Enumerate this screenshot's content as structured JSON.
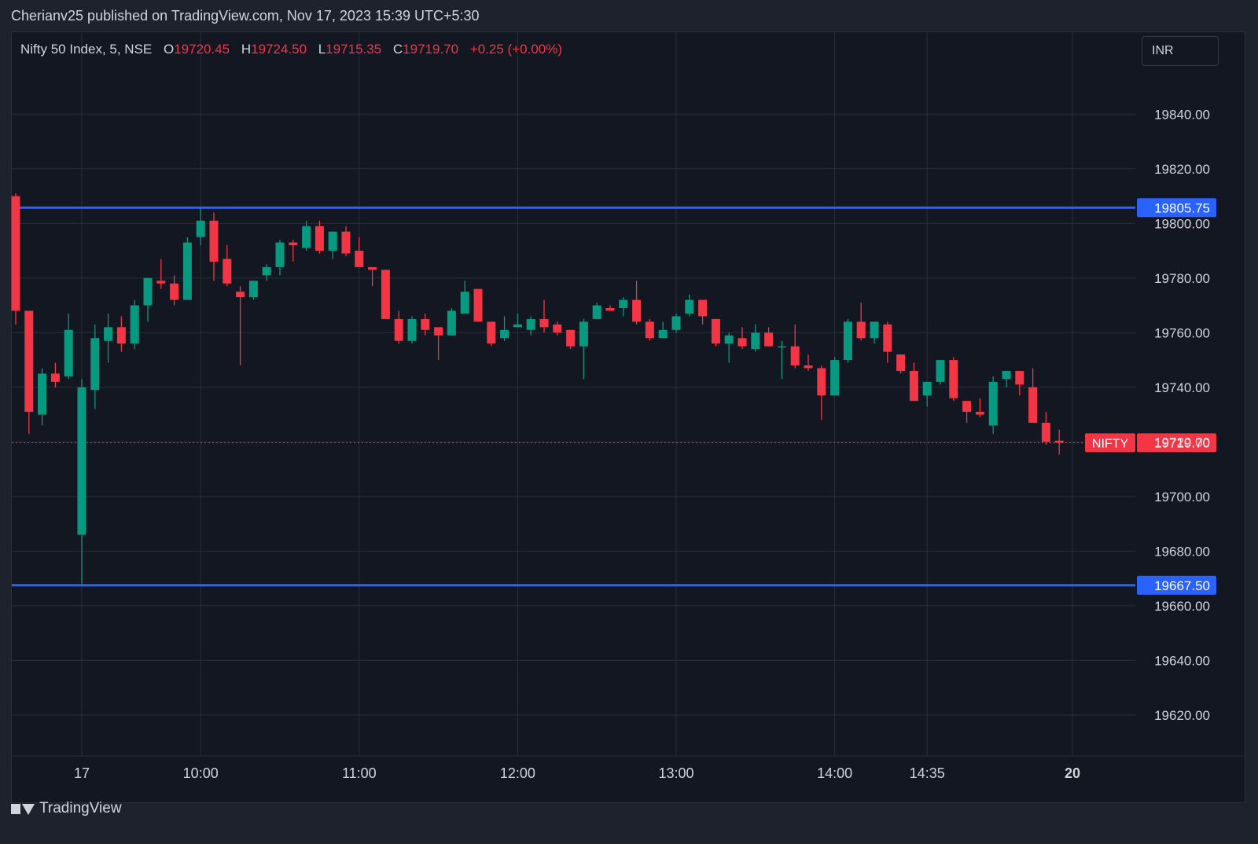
{
  "header": {
    "published_text": "Cherianv25 published on TradingView.com, Nov 17, 2023 15:39 UTC+5:30"
  },
  "legend": {
    "symbol": "Nifty 50 Index, 5, NSE",
    "open_label": "O",
    "open": "19720.45",
    "high_label": "H",
    "high": "19724.50",
    "low_label": "L",
    "low": "19715.35",
    "close_label": "C",
    "close": "19719.70",
    "change": "+0.25 (+0.00%)"
  },
  "currency": "INR",
  "footer": {
    "brand": "TradingView"
  },
  "colors": {
    "up": "#089981",
    "down": "#f23645",
    "level": "#2962ff",
    "background": "#131722",
    "grid": "#2a2e39",
    "text": "#d1d4dc"
  },
  "chart_data": {
    "type": "candlestick",
    "ylim": [
      19605,
      19870
    ],
    "y_ticks": [
      "19840.00",
      "19820.00",
      "19800.00",
      "19780.00",
      "19760.00",
      "19740.00",
      "19720.00",
      "19700.00",
      "19680.00",
      "19660.00",
      "19640.00",
      "19620.00"
    ],
    "y_tick_values": [
      19840,
      19820,
      19800,
      19780,
      19760,
      19740,
      19720,
      19700,
      19680,
      19660,
      19640,
      19620
    ],
    "x_ticks": [
      {
        "label": "17",
        "index": 5,
        "bold": false
      },
      {
        "label": "10:00",
        "index": 14,
        "bold": false
      },
      {
        "label": "11:00",
        "index": 26,
        "bold": false
      },
      {
        "label": "12:00",
        "index": 38,
        "bold": false
      },
      {
        "label": "13:00",
        "index": 50,
        "bold": false
      },
      {
        "label": "14:00",
        "index": 62,
        "bold": false
      },
      {
        "label": "14:35",
        "index": 69,
        "bold": false
      },
      {
        "label": "20",
        "index": 80,
        "bold": true
      }
    ],
    "horizontal_levels": [
      {
        "value": 19805.75,
        "label": "19805.75"
      },
      {
        "value": 19667.5,
        "label": "19667.50"
      }
    ],
    "last_price": {
      "value": 19719.7,
      "name": "NIFTY",
      "label": "19719.70"
    },
    "candles": [
      {
        "o": 19810,
        "h": 19811,
        "l": 19763,
        "c": 19768
      },
      {
        "o": 19768,
        "h": 19768,
        "l": 19723,
        "c": 19731
      },
      {
        "o": 19730,
        "h": 19747,
        "l": 19726,
        "c": 19745
      },
      {
        "o": 19745,
        "h": 19749,
        "l": 19740,
        "c": 19742
      },
      {
        "o": 19744,
        "h": 19767,
        "l": 19743,
        "c": 19761
      },
      {
        "o": 19686,
        "h": 19743,
        "l": 19667.5,
        "c": 19740
      },
      {
        "o": 19739,
        "h": 19763,
        "l": 19732,
        "c": 19758
      },
      {
        "o": 19757,
        "h": 19767,
        "l": 19749,
        "c": 19762
      },
      {
        "o": 19762,
        "h": 19766,
        "l": 19753,
        "c": 19756
      },
      {
        "o": 19756,
        "h": 19772,
        "l": 19754,
        "c": 19770
      },
      {
        "o": 19770,
        "h": 19780,
        "l": 19764,
        "c": 19780
      },
      {
        "o": 19779,
        "h": 19787,
        "l": 19776,
        "c": 19778
      },
      {
        "o": 19778,
        "h": 19781,
        "l": 19770,
        "c": 19772
      },
      {
        "o": 19772,
        "h": 19795,
        "l": 19772,
        "c": 19793
      },
      {
        "o": 19795,
        "h": 19806,
        "l": 19792,
        "c": 19801
      },
      {
        "o": 19801,
        "h": 19804,
        "l": 19779,
        "c": 19786
      },
      {
        "o": 19787,
        "h": 19792,
        "l": 19777,
        "c": 19778
      },
      {
        "o": 19775,
        "h": 19777,
        "l": 19748,
        "c": 19773
      },
      {
        "o": 19773,
        "h": 19779,
        "l": 19772,
        "c": 19779
      },
      {
        "o": 19781,
        "h": 19785,
        "l": 19779,
        "c": 19784
      },
      {
        "o": 19784,
        "h": 19794,
        "l": 19781,
        "c": 19793
      },
      {
        "o": 19793,
        "h": 19794,
        "l": 19786,
        "c": 19792
      },
      {
        "o": 19791,
        "h": 19801,
        "l": 19790,
        "c": 19799
      },
      {
        "o": 19799,
        "h": 19801,
        "l": 19789,
        "c": 19790
      },
      {
        "o": 19790,
        "h": 19797,
        "l": 19787,
        "c": 19797
      },
      {
        "o": 19797,
        "h": 19799,
        "l": 19788,
        "c": 19789
      },
      {
        "o": 19790,
        "h": 19795,
        "l": 19784,
        "c": 19784
      },
      {
        "o": 19784,
        "h": 19784,
        "l": 19777,
        "c": 19783
      },
      {
        "o": 19783,
        "h": 19783,
        "l": 19765,
        "c": 19765
      },
      {
        "o": 19765,
        "h": 19768,
        "l": 19756,
        "c": 19757
      },
      {
        "o": 19757,
        "h": 19766,
        "l": 19756,
        "c": 19765
      },
      {
        "o": 19765,
        "h": 19767,
        "l": 19759,
        "c": 19761
      },
      {
        "o": 19762,
        "h": 19762,
        "l": 19750,
        "c": 19759
      },
      {
        "o": 19759,
        "h": 19769,
        "l": 19759,
        "c": 19768
      },
      {
        "o": 19767,
        "h": 19779,
        "l": 19767,
        "c": 19775
      },
      {
        "o": 19776,
        "h": 19776,
        "l": 19764,
        "c": 19764
      },
      {
        "o": 19764,
        "h": 19764,
        "l": 19755,
        "c": 19756
      },
      {
        "o": 19758,
        "h": 19766,
        "l": 19757,
        "c": 19761
      },
      {
        "o": 19762,
        "h": 19767,
        "l": 19762,
        "c": 19763
      },
      {
        "o": 19761,
        "h": 19766,
        "l": 19759,
        "c": 19765
      },
      {
        "o": 19765,
        "h": 19772,
        "l": 19760,
        "c": 19762
      },
      {
        "o": 19763,
        "h": 19764,
        "l": 19759,
        "c": 19760
      },
      {
        "o": 19761,
        "h": 19761,
        "l": 19754,
        "c": 19755
      },
      {
        "o": 19755,
        "h": 19765,
        "l": 19743,
        "c": 19764
      },
      {
        "o": 19765,
        "h": 19771,
        "l": 19765,
        "c": 19770
      },
      {
        "o": 19769,
        "h": 19770,
        "l": 19768,
        "c": 19768
      },
      {
        "o": 19769,
        "h": 19773,
        "l": 19766,
        "c": 19772
      },
      {
        "o": 19772,
        "h": 19779,
        "l": 19763,
        "c": 19764
      },
      {
        "o": 19764,
        "h": 19765,
        "l": 19757,
        "c": 19758
      },
      {
        "o": 19758,
        "h": 19764,
        "l": 19758,
        "c": 19761
      },
      {
        "o": 19761,
        "h": 19767,
        "l": 19760,
        "c": 19766
      },
      {
        "o": 19767,
        "h": 19774,
        "l": 19766,
        "c": 19772
      },
      {
        "o": 19772,
        "h": 19771,
        "l": 19763,
        "c": 19766
      },
      {
        "o": 19765,
        "h": 19765,
        "l": 19755,
        "c": 19756
      },
      {
        "o": 19756,
        "h": 19760,
        "l": 19749,
        "c": 19759
      },
      {
        "o": 19758,
        "h": 19762,
        "l": 19754,
        "c": 19755
      },
      {
        "o": 19754,
        "h": 19763,
        "l": 19753,
        "c": 19760
      },
      {
        "o": 19760,
        "h": 19762,
        "l": 19755,
        "c": 19755
      },
      {
        "o": 19755,
        "h": 19757,
        "l": 19743,
        "c": 19755
      },
      {
        "o": 19755,
        "h": 19763,
        "l": 19747,
        "c": 19748
      },
      {
        "o": 19748,
        "h": 19752,
        "l": 19746,
        "c": 19747
      },
      {
        "o": 19747,
        "h": 19748,
        "l": 19728,
        "c": 19737
      },
      {
        "o": 19737,
        "h": 19751,
        "l": 19737,
        "c": 19750
      },
      {
        "o": 19750,
        "h": 19765,
        "l": 19749,
        "c": 19764
      },
      {
        "o": 19764,
        "h": 19771,
        "l": 19757,
        "c": 19758
      },
      {
        "o": 19758,
        "h": 19764,
        "l": 19756,
        "c": 19764
      },
      {
        "o": 19763,
        "h": 19764,
        "l": 19749,
        "c": 19753
      },
      {
        "o": 19752,
        "h": 19752,
        "l": 19745,
        "c": 19746
      },
      {
        "o": 19746,
        "h": 19749,
        "l": 19735,
        "c": 19735
      },
      {
        "o": 19737,
        "h": 19742,
        "l": 19733,
        "c": 19742
      },
      {
        "o": 19742,
        "h": 19750,
        "l": 19741,
        "c": 19750
      },
      {
        "o": 19750,
        "h": 19751,
        "l": 19735,
        "c": 19736
      },
      {
        "o": 19735,
        "h": 19735,
        "l": 19727,
        "c": 19731
      },
      {
        "o": 19731,
        "h": 19736,
        "l": 19729,
        "c": 19730
      },
      {
        "o": 19726,
        "h": 19744,
        "l": 19723,
        "c": 19742
      },
      {
        "o": 19743,
        "h": 19746,
        "l": 19740,
        "c": 19746
      },
      {
        "o": 19746,
        "h": 19745,
        "l": 19737,
        "c": 19741
      },
      {
        "o": 19740,
        "h": 19747,
        "l": 19727,
        "c": 19727
      },
      {
        "o": 19727,
        "h": 19731,
        "l": 19719,
        "c": 19720
      },
      {
        "o": 19720.45,
        "h": 19724.5,
        "l": 19715.35,
        "c": 19719.7
      }
    ]
  }
}
